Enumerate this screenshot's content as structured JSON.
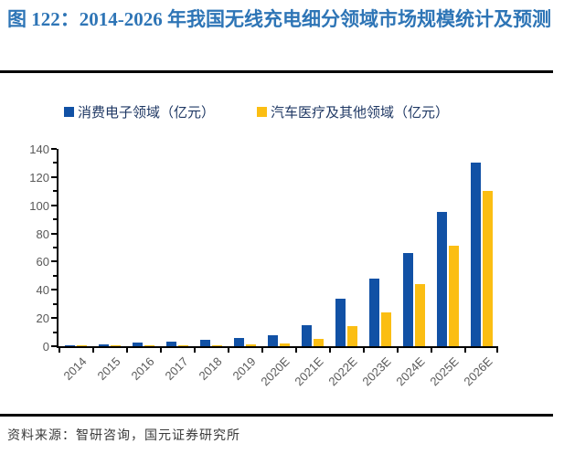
{
  "figure": {
    "label": "图 122：",
    "title": "2014-2026 年我国无线充电细分领域市场规模统计及预测",
    "source": "资料来源：智研咨询，国元证券研究所"
  },
  "colors": {
    "title_blue": "#2E75B6",
    "legend_text": "#1F3864",
    "axis_text": "#595959",
    "rule_black": "#000000"
  },
  "chart_data": {
    "type": "bar",
    "title": "2014-2026 年我国无线充电细分领域市场规模统计及预测",
    "categories": [
      "2014",
      "2015",
      "2016",
      "2017",
      "2018",
      "2019",
      "2020E",
      "2021E",
      "2022E",
      "2023E",
      "2024E",
      "2025E",
      "2026E"
    ],
    "series": [
      {
        "name": "消费电子领域（亿元）",
        "color": "#1151A5",
        "values": [
          0.9,
          1.6,
          2.3,
          3.1,
          4.4,
          5.6,
          7.5,
          15,
          34,
          48,
          66,
          95,
          130
        ]
      },
      {
        "name": "汽车医疗及其他领域（亿元）",
        "color": "#FBBE13",
        "values": [
          0.3,
          0.4,
          0.5,
          0.7,
          0.9,
          1.2,
          2,
          5.3,
          14,
          24,
          44,
          71,
          110
        ]
      }
    ],
    "xlabel": "",
    "ylabel": "",
    "ylim": [
      0,
      140
    ],
    "ytick_step": 20,
    "ytick_minor_step": 10,
    "yticks": [
      0,
      20,
      40,
      60,
      80,
      100,
      120,
      140
    ],
    "grid": false,
    "legend_position": "top"
  }
}
